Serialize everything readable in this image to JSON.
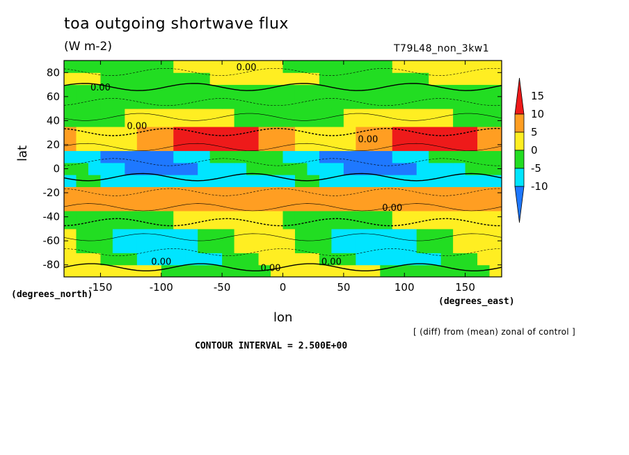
{
  "chart_data": {
    "type": "heatmap",
    "title": "toa outgoing shortwave flux",
    "units": "(W m-2)",
    "run_id": "T79L48_non_3kw1",
    "xlabel": "lon",
    "ylabel": "lat",
    "x_unit_label": "(degrees_east)",
    "y_unit_label": "(degrees_north)",
    "xlim": [
      -180,
      180
    ],
    "ylim": [
      -90,
      90
    ],
    "x_ticks": [
      -150,
      -100,
      -50,
      0,
      50,
      100,
      150
    ],
    "y_ticks": [
      -80,
      -60,
      -40,
      -20,
      0,
      20,
      40,
      60,
      80
    ],
    "note": "[ (diff) from (mean) zonal of control ]",
    "contour_interval": "CONTOUR INTERVAL = 2.500E+00",
    "contour_label": "0.00",
    "colorbar": {
      "levels": [
        -10,
        -5,
        0,
        5,
        10,
        15
      ],
      "colors": [
        "#1e78ff",
        "#00e5ff",
        "#22dd22",
        "#ffee22",
        "#ff9e22",
        "#ee1a1a"
      ]
    },
    "zonal_bands": [
      {
        "lat": [
          -90,
          -80
        ],
        "value": 0
      },
      {
        "lat": [
          -80,
          -70
        ],
        "value": -3
      },
      {
        "lat": [
          -70,
          -50
        ],
        "value": -3
      },
      {
        "lat": [
          -50,
          -35
        ],
        "value": 0
      },
      {
        "lat": [
          -35,
          -15
        ],
        "value": 8
      },
      {
        "lat": [
          -15,
          -5
        ],
        "value": -7
      },
      {
        "lat": [
          -5,
          5
        ],
        "value": -8
      },
      {
        "lat": [
          5,
          15
        ],
        "value": -7
      },
      {
        "lat": [
          15,
          35
        ],
        "value": 8
      },
      {
        "lat": [
          35,
          50
        ],
        "value": 0
      },
      {
        "lat": [
          50,
          70
        ],
        "value": -3
      },
      {
        "lat": [
          70,
          80
        ],
        "value": 0
      },
      {
        "lat": [
          80,
          90
        ],
        "value": 0
      }
    ]
  }
}
